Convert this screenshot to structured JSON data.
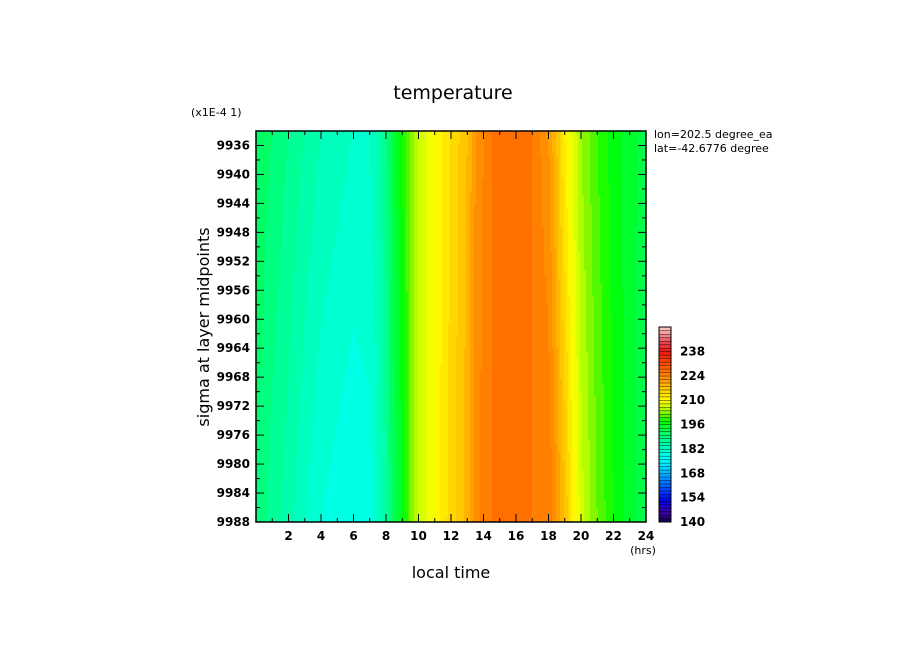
{
  "chart_data": {
    "type": "heatmap",
    "title": "temperature",
    "xlabel": "local time",
    "x_unit": "(hrs)",
    "ylabel": "sigma at layer midpoints",
    "y_scale_note": "(x1E-4 1)",
    "info_lines": [
      "lon=202.5 degree_ea",
      "lat=-42.6776 degree"
    ],
    "x_range": [
      0,
      24
    ],
    "y_range": [
      9934,
      9988
    ],
    "y_inverted": true,
    "x_ticks": [
      "2",
      "4",
      "6",
      "8",
      "10",
      "12",
      "14",
      "16",
      "18",
      "20",
      "22",
      "24"
    ],
    "y_ticks": [
      "9936",
      "9940",
      "9944",
      "9948",
      "9952",
      "9956",
      "9960",
      "9964",
      "9968",
      "9972",
      "9976",
      "9980",
      "9984",
      "9988"
    ],
    "colorbar": {
      "min": 140,
      "max": 252,
      "step": 2,
      "tick_labels": [
        "140",
        "154",
        "168",
        "182",
        "196",
        "210",
        "224",
        "238"
      ]
    },
    "local_time": [
      0,
      1,
      2,
      3,
      4,
      5,
      6,
      7,
      7.5,
      8,
      8.5,
      9,
      9.5,
      10,
      10.5,
      11,
      11.5,
      12,
      12.5,
      13,
      13.5,
      14,
      14.5,
      15,
      16,
      17,
      17.5,
      18,
      18.5,
      19,
      19.5,
      20,
      21,
      22,
      23,
      24
    ],
    "temperature_top": [
      192,
      190,
      188,
      186,
      184,
      183,
      182,
      182,
      184,
      188,
      194,
      198,
      202,
      206,
      208,
      210,
      212,
      214,
      216,
      218,
      222,
      224,
      226,
      226,
      226,
      226,
      224,
      222,
      218,
      212,
      208,
      204,
      200,
      197,
      195,
      193
    ],
    "temperature_bottom": [
      190,
      187,
      185,
      182,
      180,
      179,
      178,
      179,
      182,
      186,
      192,
      196,
      202,
      206,
      208,
      210,
      213,
      215,
      217,
      219,
      223,
      225,
      226,
      226,
      226,
      226,
      226,
      226,
      222,
      218,
      212,
      207,
      202,
      198,
      195,
      192
    ]
  }
}
